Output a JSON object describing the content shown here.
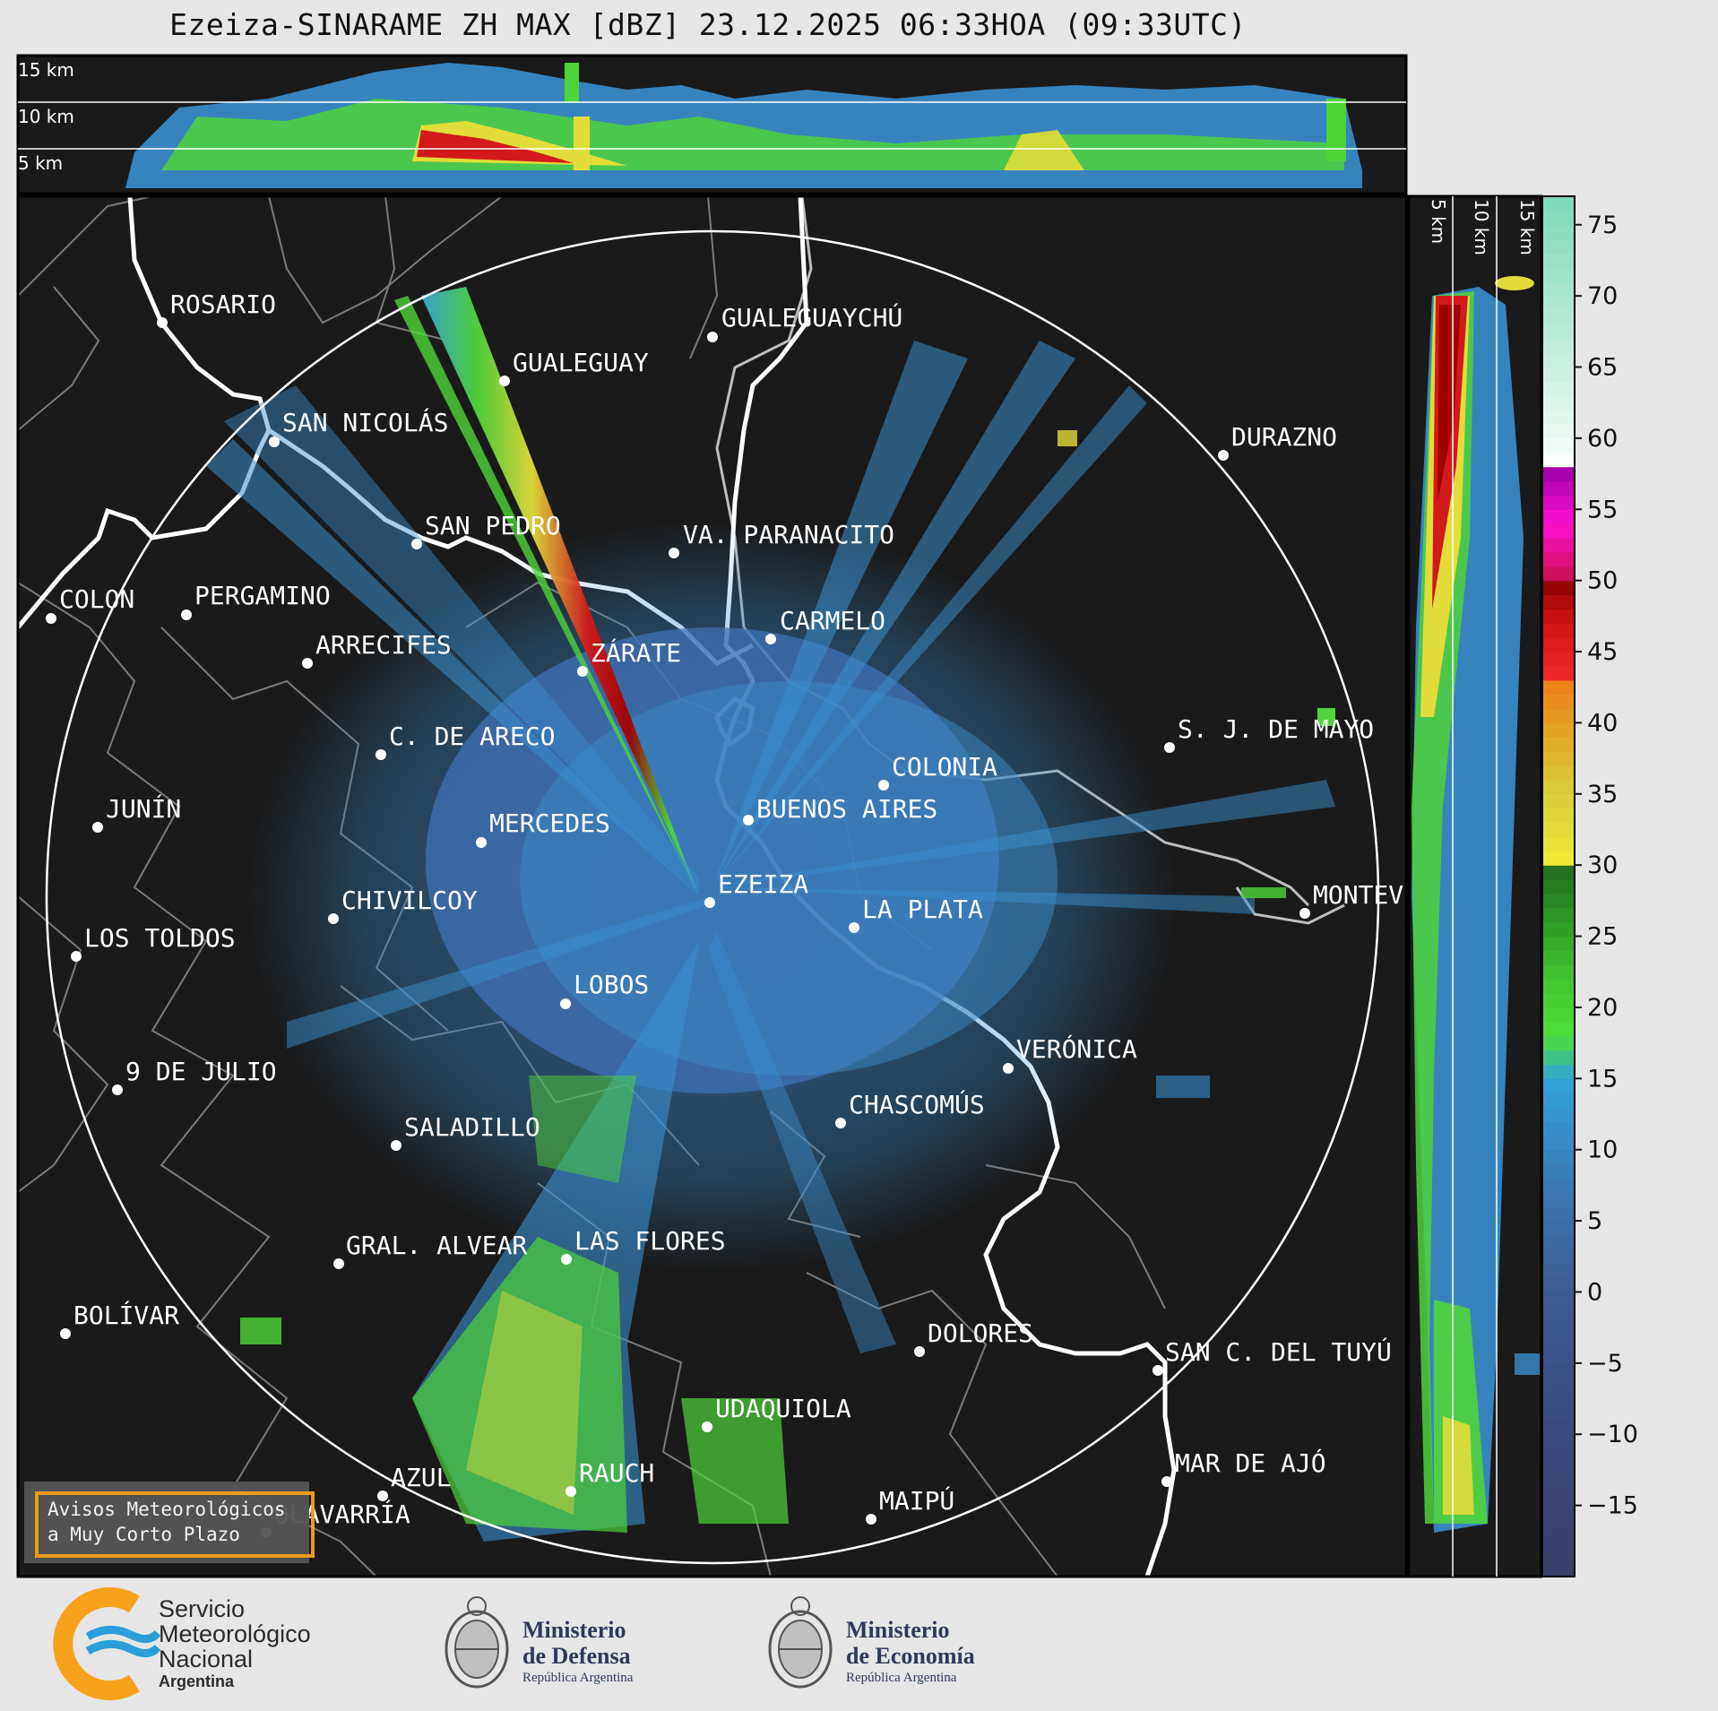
{
  "title": "Ezeiza-SINARAME ZH MAX [dBZ] 23.12.2025 06:33HOA (09:33UTC)",
  "top_panel": {
    "altitude_labels": [
      "15 km",
      "10 km",
      "5 km"
    ]
  },
  "side_panel": {
    "altitude_labels": [
      "5 km",
      "10 km",
      "15 km"
    ]
  },
  "colorbar": {
    "unit": "dBZ",
    "ticks": [
      "75",
      "70",
      "65",
      "60",
      "55",
      "50",
      "45",
      "40",
      "35",
      "30",
      "25",
      "20",
      "15",
      "10",
      "5",
      "0",
      "−5",
      "−10",
      "−15"
    ],
    "tick_values": [
      75,
      70,
      65,
      60,
      55,
      50,
      45,
      40,
      35,
      30,
      25,
      20,
      15,
      10,
      5,
      0,
      -5,
      -10,
      -15
    ],
    "range": [
      -20,
      77
    ]
  },
  "cities": [
    {
      "name": "ROSARIO",
      "value": "ROSARIO"
    },
    {
      "name": "GUALEGUAYCHÚ",
      "value": "GUALEGUAYCHÚ"
    },
    {
      "name": "GUALEGUAY",
      "value": "GUALEGUAY"
    },
    {
      "name": "SAN NICOLÁS",
      "value": "SAN NICOLÁS"
    },
    {
      "name": "DURAZNO",
      "value": "DURAZNO"
    },
    {
      "name": "SAN PEDRO",
      "value": "SAN PEDRO"
    },
    {
      "name": "VA PARANACITO",
      "value": "VA. PARANACITO"
    },
    {
      "name": "COLON",
      "value": "COLON"
    },
    {
      "name": "PERGAMINO",
      "value": "PERGAMINO"
    },
    {
      "name": "CARMELO",
      "value": "CARMELO"
    },
    {
      "name": "ARRECIFES",
      "value": "ARRECIFES"
    },
    {
      "name": "ZÁRATE",
      "value": "ZÁRATE"
    },
    {
      "name": "S. J. DE MAYO",
      "value": "S. J. DE MAYO"
    },
    {
      "name": "C. DE ARECO",
      "value": "C. DE ARECO"
    },
    {
      "name": "COLONIA",
      "value": "COLONIA"
    },
    {
      "name": "JUNÍN",
      "value": "JUNÍN"
    },
    {
      "name": "BUENOS AIRES",
      "value": "BUENOS AIRES"
    },
    {
      "name": "MERCEDES",
      "value": "MERCEDES"
    },
    {
      "name": "EZEIZA",
      "value": "EZEIZA"
    },
    {
      "name": "MONTEVIDEO",
      "value": "MONTEV"
    },
    {
      "name": "CHIVILCOY",
      "value": "CHIVILCOY"
    },
    {
      "name": "LA PLATA",
      "value": "LA PLATA"
    },
    {
      "name": "LOS TOLDOS",
      "value": "LOS TOLDOS"
    },
    {
      "name": "LOBOS",
      "value": "LOBOS"
    },
    {
      "name": "VERÓNICA",
      "value": "VERÓNICA"
    },
    {
      "name": "9 DE JULIO",
      "value": "9 DE JULIO"
    },
    {
      "name": "CHASCOMÚS",
      "value": "CHASCOMÚS"
    },
    {
      "name": "SALADILLO",
      "value": "SALADILLO"
    },
    {
      "name": "GRAL. ALVEAR",
      "value": "GRAL. ALVEAR"
    },
    {
      "name": "LAS FLORES",
      "value": "LAS FLORES"
    },
    {
      "name": "BOLÍVAR",
      "value": "BOLÍVAR"
    },
    {
      "name": "DOLORES",
      "value": "DOLORES"
    },
    {
      "name": "SAN C. DEL TUYÚ",
      "value": "SAN C. DEL TUYÚ"
    },
    {
      "name": "UDAQUIOLA",
      "value": "UDAQUIOLA"
    },
    {
      "name": "AZUL",
      "value": "AZUL"
    },
    {
      "name": "RAUCH",
      "value": "RAUCH"
    },
    {
      "name": "MAR DE AJÓ",
      "value": "MAR DE AJÓ"
    },
    {
      "name": "OLAVARRÍA",
      "value": "OLAVARRÍA"
    },
    {
      "name": "MAIPÚ",
      "value": "MAIPÚ"
    }
  ],
  "warning_box": {
    "line1": "Avisos Meteorológicos",
    "line2": "a Muy Corto Plazo"
  },
  "footer": {
    "smn": {
      "line1": "Servicio",
      "line2": "Meteorológico",
      "line3": "Nacional",
      "line4": "Argentina"
    },
    "defensa": {
      "line1": "Ministerio",
      "line2": "de Defensa",
      "line3": "República Argentina"
    },
    "economia": {
      "line1": "Ministerio",
      "line2": "de Economía",
      "line3": "República Argentina"
    }
  },
  "colors": {
    "map_background": "#1a1a1a",
    "radar_blue": "#3a86c0",
    "radar_green": "#4fd43a",
    "radar_yellow": "#e2dc3a",
    "radar_red": "#d21a1a",
    "coast": "#ffffff",
    "boundaries": "#7a7a7a",
    "smn_orange": "#f7a21b",
    "smn_blue": "#2a9fd8"
  }
}
